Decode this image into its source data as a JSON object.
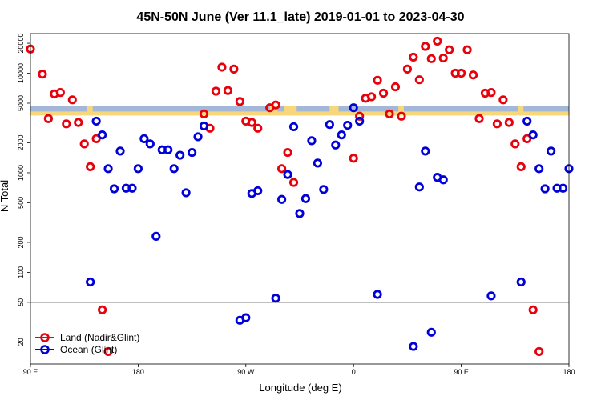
{
  "chart_data": {
    "type": "scatter",
    "title": "45N-50N June (Ver 11.1_late)   2019-01-01 to 2023-04-30",
    "xlabel": "Longitude (deg E)",
    "ylabel": "N Total",
    "y_scale": "log",
    "ylim": [
      12,
      25000
    ],
    "x_ticks": [
      "90 E",
      "180",
      "90 W",
      "0",
      "90 E",
      "180"
    ],
    "y_ticks": [
      20,
      50,
      100,
      200,
      500,
      1000,
      2000,
      5000,
      10000,
      20000
    ],
    "reference_line": 50,
    "band": {
      "y": 4200,
      "colors": [
        "#f7d77a",
        "#a3b8d9"
      ]
    },
    "grid": false,
    "legend_position": "bottom-left",
    "series": [
      {
        "name": "Land (Nadir&Glint)",
        "color": "#e8000b",
        "points": [
          [
            0,
            17500
          ],
          [
            2,
            9800
          ],
          [
            3,
            3500
          ],
          [
            4,
            6200
          ],
          [
            5,
            6400
          ],
          [
            6,
            3100
          ],
          [
            7,
            5400
          ],
          [
            8,
            3200
          ],
          [
            9,
            1950
          ],
          [
            10,
            1150
          ],
          [
            11,
            2200
          ],
          [
            12,
            42
          ],
          [
            13,
            16
          ],
          [
            29,
            3900
          ],
          [
            30,
            2800
          ],
          [
            31,
            6600
          ],
          [
            32,
            11500
          ],
          [
            33,
            6700
          ],
          [
            34,
            11000
          ],
          [
            35,
            5200
          ],
          [
            36,
            3300
          ],
          [
            37,
            3200
          ],
          [
            38,
            2800
          ],
          [
            40,
            4500
          ],
          [
            41,
            4800
          ],
          [
            42,
            1100
          ],
          [
            43,
            1600
          ],
          [
            44,
            800
          ],
          [
            54,
            1400
          ],
          [
            55,
            3700
          ],
          [
            56,
            5600
          ],
          [
            57,
            5800
          ],
          [
            58,
            8500
          ],
          [
            59,
            6300
          ],
          [
            60,
            3900
          ],
          [
            61,
            7300
          ],
          [
            62,
            3700
          ],
          [
            63,
            11000
          ],
          [
            64,
            14500
          ],
          [
            65,
            8600
          ],
          [
            66,
            18600
          ],
          [
            67,
            14000
          ],
          [
            68,
            21000
          ],
          [
            69,
            14200
          ],
          [
            70,
            17200
          ],
          [
            71,
            10000
          ],
          [
            72,
            10000
          ],
          [
            73,
            17200
          ],
          [
            74,
            9600
          ],
          [
            75,
            3500
          ],
          [
            76,
            6300
          ],
          [
            77,
            6400
          ],
          [
            78,
            3100
          ],
          [
            79,
            5400
          ],
          [
            80,
            3200
          ],
          [
            81,
            1950
          ],
          [
            82,
            1150
          ],
          [
            83,
            2200
          ],
          [
            84,
            42
          ],
          [
            85,
            16
          ]
        ]
      },
      {
        "name": "Ocean (Glint)",
        "color": "#0000d8",
        "points": [
          [
            10,
            80
          ],
          [
            11,
            3300
          ],
          [
            12,
            2400
          ],
          [
            13,
            1100
          ],
          [
            14,
            690
          ],
          [
            15,
            1650
          ],
          [
            16,
            700
          ],
          [
            17,
            700
          ],
          [
            18,
            1100
          ],
          [
            19,
            2200
          ],
          [
            20,
            1950
          ],
          [
            21,
            230
          ],
          [
            22,
            1700
          ],
          [
            23,
            1700
          ],
          [
            24,
            1100
          ],
          [
            25,
            1500
          ],
          [
            26,
            630
          ],
          [
            27,
            1600
          ],
          [
            28,
            2300
          ],
          [
            29,
            2950
          ],
          [
            35,
            33
          ],
          [
            36,
            35
          ],
          [
            37,
            620
          ],
          [
            38,
            660
          ],
          [
            41,
            55
          ],
          [
            42,
            540
          ],
          [
            43,
            960
          ],
          [
            44,
            2900
          ],
          [
            45,
            390
          ],
          [
            46,
            550
          ],
          [
            47,
            2100
          ],
          [
            48,
            1250
          ],
          [
            49,
            680
          ],
          [
            50,
            3050
          ],
          [
            51,
            1900
          ],
          [
            52,
            2400
          ],
          [
            53,
            3000
          ],
          [
            54,
            4500
          ],
          [
            55,
            3300
          ],
          [
            58,
            60
          ],
          [
            64,
            18
          ],
          [
            65,
            720
          ],
          [
            66,
            1650
          ],
          [
            67,
            25
          ],
          [
            68,
            900
          ],
          [
            69,
            850
          ],
          [
            77,
            58
          ],
          [
            82,
            80
          ],
          [
            83,
            3300
          ],
          [
            84,
            2400
          ],
          [
            85,
            1100
          ],
          [
            86,
            690
          ],
          [
            87,
            1650
          ],
          [
            88,
            700
          ],
          [
            89,
            700
          ],
          [
            90,
            1100
          ]
        ]
      }
    ]
  }
}
